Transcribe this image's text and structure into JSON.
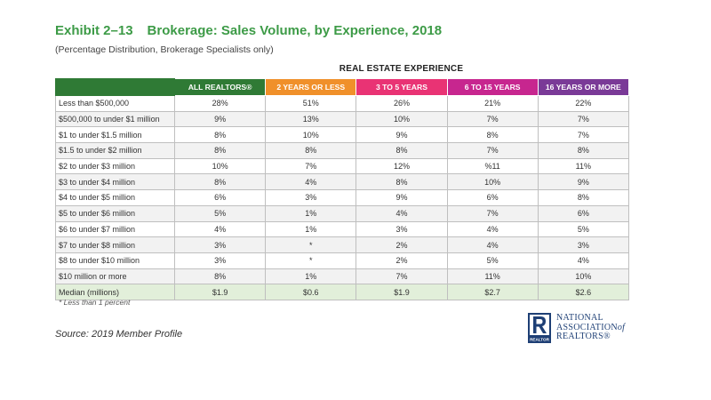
{
  "title": {
    "exhibit": "Exhibit 2–13",
    "text": "Brokerage: Sales Volume, by Experience, 2018"
  },
  "subtitle": "(Percentage Distribution, Brokerage Specialists only)",
  "group_header": "REAL ESTATE EXPERIENCE",
  "columns": [
    {
      "label": "ALL REALTORS®",
      "color": "#2f7a35"
    },
    {
      "label": "2 YEARS OR LESS",
      "color": "#f0902a"
    },
    {
      "label": "3 TO 5 YEARS",
      "color": "#e93374"
    },
    {
      "label": "6 TO 15 YEARS",
      "color": "#c7268f"
    },
    {
      "label": "16 YEARS OR MORE",
      "color": "#7a3a97"
    }
  ],
  "rows": [
    {
      "label": "Less than $500,000",
      "values": [
        "28%",
        "51%",
        "26%",
        "21%",
        "22%"
      ]
    },
    {
      "label": "$500,000  to under $1 million",
      "values": [
        "9%",
        "13%",
        "10%",
        "7%",
        "7%"
      ]
    },
    {
      "label": "$1 to under $1.5 million",
      "values": [
        "8%",
        "10%",
        "9%",
        "8%",
        "7%"
      ]
    },
    {
      "label": "$1.5 to under $2 million",
      "values": [
        "8%",
        "8%",
        "8%",
        "7%",
        "8%"
      ]
    },
    {
      "label": "$2 to under $3 million",
      "values": [
        "10%",
        "7%",
        "12%",
        "%11",
        "11%"
      ]
    },
    {
      "label": "$3 to under $4 million",
      "values": [
        "8%",
        "4%",
        "8%",
        "10%",
        "9%"
      ]
    },
    {
      "label": "$4 to under $5 million",
      "values": [
        "6%",
        "3%",
        "9%",
        "6%",
        "8%"
      ]
    },
    {
      "label": "$5 to under $6 million",
      "values": [
        "5%",
        "1%",
        "4%",
        "7%",
        "6%"
      ]
    },
    {
      "label": "$6 to under $7 million",
      "values": [
        "4%",
        "1%",
        "3%",
        "4%",
        "5%"
      ]
    },
    {
      "label": "$7 to under $8 million",
      "values": [
        "3%",
        "*",
        "2%",
        "4%",
        "3%"
      ]
    },
    {
      "label": "$8 to under $10 million",
      "values": [
        "3%",
        "*",
        "2%",
        "5%",
        "4%"
      ]
    },
    {
      "label": "$10 million or more",
      "values": [
        "8%",
        "1%",
        "7%",
        "11%",
        "10%"
      ]
    }
  ],
  "median": {
    "label": "Median (millions)",
    "values": [
      "$1.9",
      "$0.6",
      "$1.9",
      "$2.7",
      "$2.6"
    ]
  },
  "footnote": "* Less than 1 percent",
  "source": "Source: 2019 Member Profile",
  "logo": {
    "mark_letter": "R",
    "mark_caption": "REALTOR",
    "line1": "NATIONAL",
    "line2": "ASSOCIATION",
    "line2_suffix": "of",
    "line3": "REALTORS®",
    "color": "#1e3f75"
  }
}
